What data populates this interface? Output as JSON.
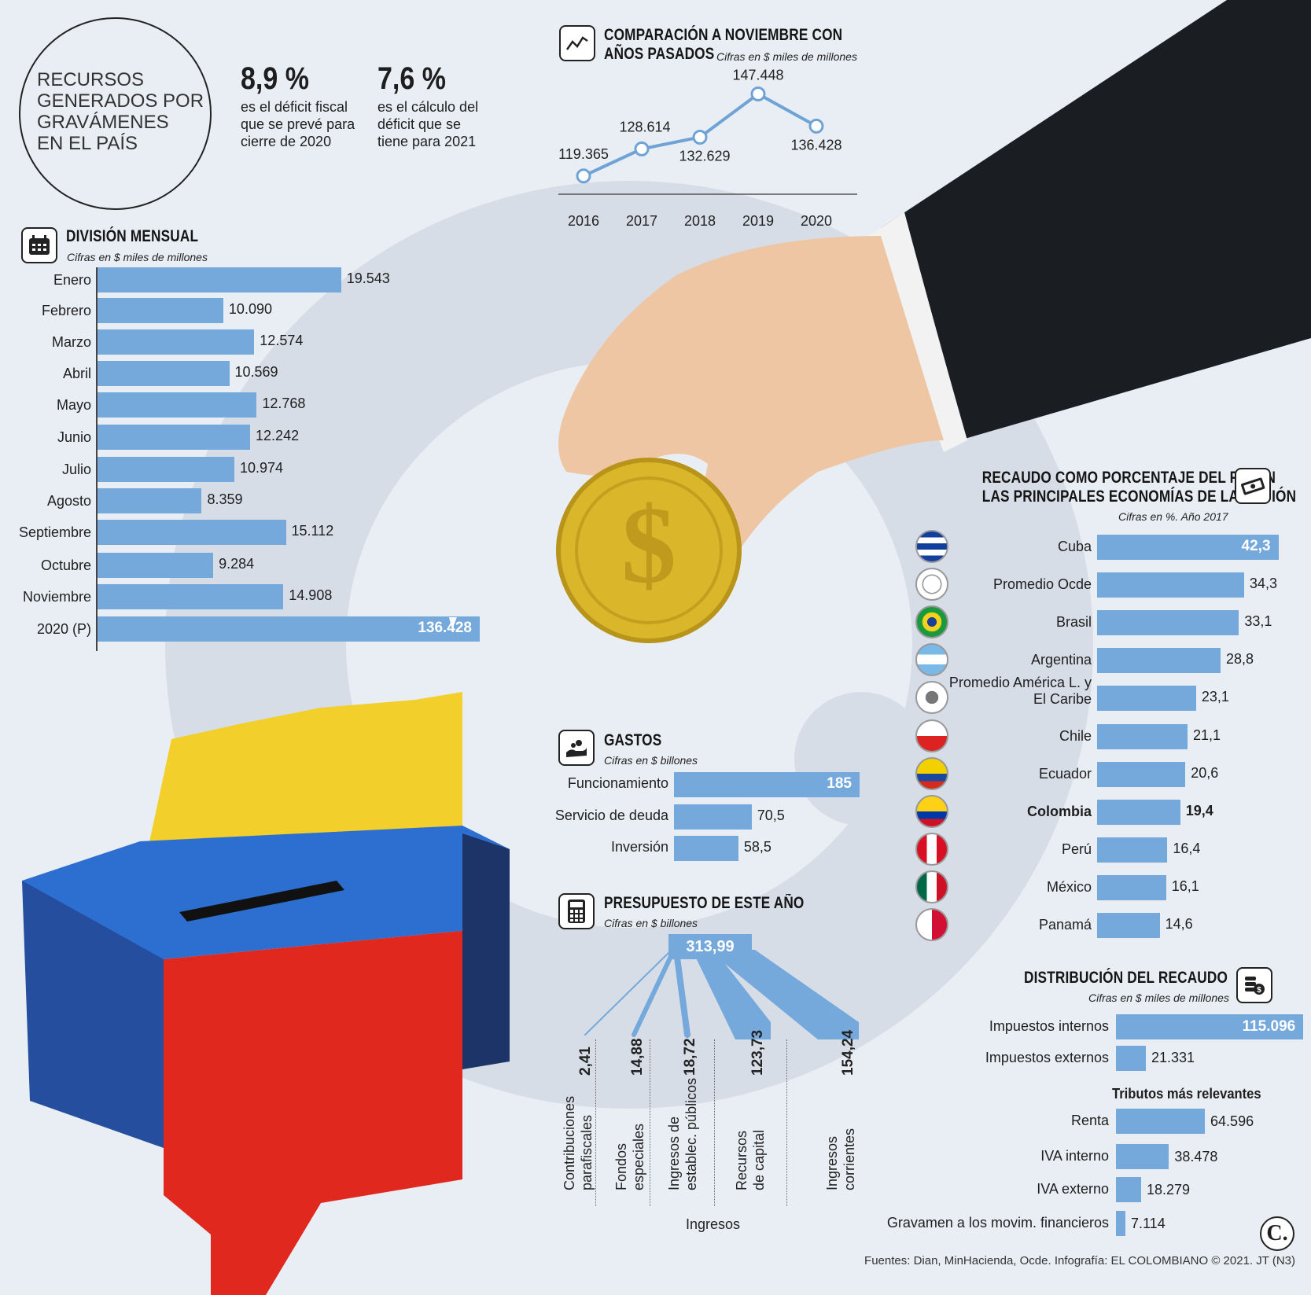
{
  "header": {
    "title_lines": [
      "RECURSOS",
      "GENERADOS POR",
      "GRAVÁMENES",
      "EN EL PAÍS"
    ],
    "stat1": {
      "value": "8,9 %",
      "lines": [
        "es el déficit fiscal",
        "que se prevé para",
        "cierre de 2020"
      ]
    },
    "stat2": {
      "value": "7,6 %",
      "lines": [
        "es el cálculo del",
        "déficit que se",
        "tiene para 2021"
      ]
    }
  },
  "icons": {
    "trend": "line-chart-icon",
    "calendar": "calendar-icon",
    "money": "banknote-icon",
    "hand": "hand-coins-icon",
    "calculator": "calculator-icon",
    "coins": "coin-stack-icon"
  },
  "colors": {
    "bar": "#75a8db",
    "line": "#6fa3d6",
    "text": "#1e1e1e",
    "background": "#e9eef4"
  },
  "comparison": {
    "title_line1": "COMPARACIÓN A NOVIEMBRE CON",
    "title_line2": "AÑOS PASADOS",
    "subtitle": "Cifras en $ miles de millones"
  },
  "monthly": {
    "title": "DIVISIÓN MENSUAL",
    "subtitle": "Cifras en $ miles de millones"
  },
  "gastos": {
    "title": "GASTOS",
    "subtitle": "Cifras en $ billones"
  },
  "presupuesto": {
    "title": "PRESUPUESTO DE ESTE AÑO",
    "subtitle": "Cifras en $ billones",
    "total": "313,99",
    "axis_label": "Ingresos",
    "items": [
      {
        "value": "2,41",
        "line1": "Contribuciones",
        "line2": "parafiscales"
      },
      {
        "value": "14,88",
        "line1": "Fondos",
        "line2": "especiales"
      },
      {
        "value": "18,72",
        "line1": "Ingresos de",
        "line2": "establec. públicos"
      },
      {
        "value": "123,73",
        "line1": "Recursos",
        "line2": "de capital"
      },
      {
        "value": "154,24",
        "line1": "Ingresos",
        "line2": "corrientes"
      }
    ]
  },
  "pib": {
    "title_line1": "RECAUDO COMO PORCENTAJE DEL PIB EN",
    "title_line2": "LAS PRINCIPALES ECONOMÍAS DE LA REGIÓN",
    "subtitle": "Cifras en %. Año 2017"
  },
  "distribucion": {
    "title": "DISTRIBUCIÓN DEL RECAUDO",
    "subtitle": "Cifras en $ miles de millones",
    "tributos_heading": "Tributos más relevantes"
  },
  "footer": {
    "source": "Fuentes: Dian, MinHacienda, Ocde. Infografía: EL COLOMBIANO © 2021. JT (N3)",
    "logo": "C."
  },
  "chart_data": [
    {
      "id": "comparison",
      "type": "line",
      "title": "COMPARACIÓN A NOVIEMBRE CON AÑOS PASADOS",
      "categories": [
        "2016",
        "2017",
        "2018",
        "2019",
        "2020"
      ],
      "values": [
        119365,
        128614,
        132629,
        147448,
        136428
      ],
      "labels": [
        "119.365",
        "128.614",
        "132.629",
        "147.448",
        "136.428"
      ]
    },
    {
      "id": "monthly",
      "type": "bar",
      "title": "DIVISIÓN MENSUAL",
      "categories": [
        "Enero",
        "Febrero",
        "Marzo",
        "Abril",
        "Mayo",
        "Junio",
        "Julio",
        "Agosto",
        "Septiembre",
        "Octubre",
        "Noviembre",
        "2020 (P)"
      ],
      "values": [
        19543,
        10090,
        12574,
        10569,
        12768,
        12242,
        10974,
        8359,
        15112,
        9284,
        14908,
        136428
      ],
      "labels": [
        "19.543",
        "10.090",
        "12.574",
        "10.569",
        "12.768",
        "12.242",
        "10.974",
        "8.359",
        "15.112",
        "9.284",
        "14.908",
        "136.428"
      ]
    },
    {
      "id": "gastos",
      "type": "bar",
      "title": "GASTOS",
      "categories": [
        "Funcionamiento",
        "Servicio de deuda",
        "Inversión"
      ],
      "values": [
        185,
        70.5,
        58.5
      ],
      "labels": [
        "185",
        "70,5",
        "58,5"
      ]
    },
    {
      "id": "pib",
      "type": "bar",
      "title": "RECAUDO COMO PORCENTAJE DEL PIB EN LAS PRINCIPALES ECONOMÍAS DE LA REGIÓN",
      "categories": [
        "Cuba",
        "Promedio Ocde",
        "Brasil",
        "Argentina",
        "Promedio América L. y El Caribe",
        "Chile",
        "Ecuador",
        "Colombia",
        "Perú",
        "México",
        "Panamá"
      ],
      "values": [
        42.3,
        34.3,
        33.1,
        28.8,
        23.1,
        21.1,
        20.6,
        19.4,
        16.4,
        16.1,
        14.6
      ],
      "labels": [
        "42,3",
        "34,3",
        "33,1",
        "28,8",
        "23,1",
        "21,1",
        "20,6",
        "19,4",
        "16,4",
        "16,1",
        "14,6"
      ]
    },
    {
      "id": "distribucion",
      "type": "bar",
      "title": "DISTRIBUCIÓN DEL RECAUDO",
      "categories": [
        "Impuestos internos",
        "Impuestos externos"
      ],
      "values": [
        115096,
        21331
      ],
      "labels": [
        "115.096",
        "21.331"
      ]
    },
    {
      "id": "tributos",
      "type": "bar",
      "title": "Tributos más relevantes",
      "categories": [
        "Renta",
        "IVA interno",
        "IVA externo",
        "Gravamen a los movim. financieros"
      ],
      "values": [
        64596,
        38478,
        18279,
        7114
      ],
      "labels": [
        "64.596",
        "38.478",
        "18.279",
        "7.114"
      ]
    }
  ]
}
